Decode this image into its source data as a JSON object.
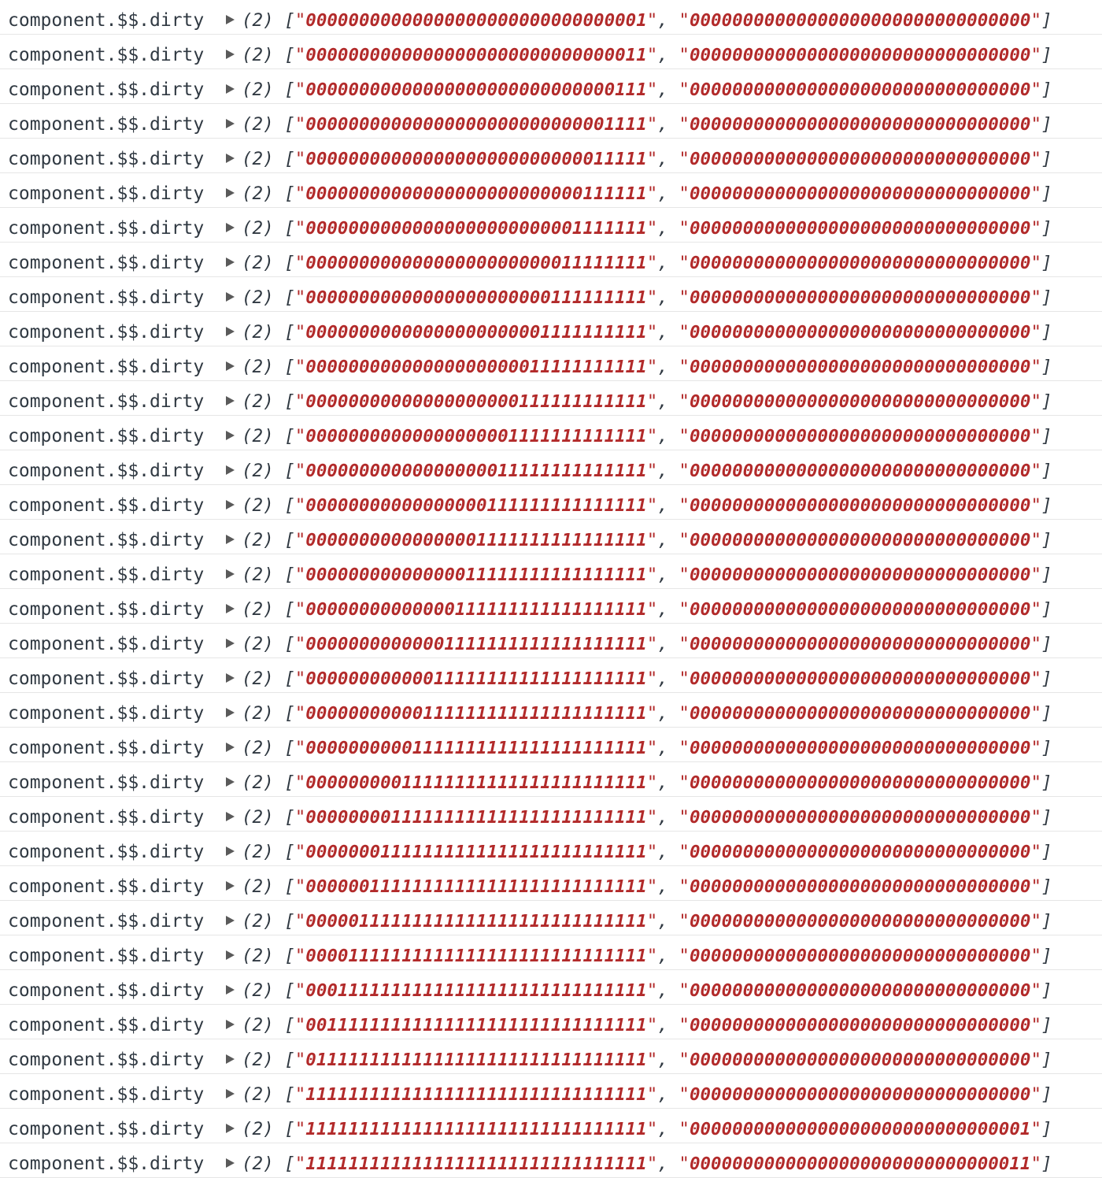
{
  "console": {
    "rows": [
      {
        "label": "component.$$.dirty",
        "count": "(2)",
        "first": "00000000000000000000000000000001",
        "second": "00000000000000000000000000000000"
      },
      {
        "label": "component.$$.dirty",
        "count": "(2)",
        "first": "00000000000000000000000000000011",
        "second": "00000000000000000000000000000000"
      },
      {
        "label": "component.$$.dirty",
        "count": "(2)",
        "first": "00000000000000000000000000000111",
        "second": "00000000000000000000000000000000"
      },
      {
        "label": "component.$$.dirty",
        "count": "(2)",
        "first": "00000000000000000000000000001111",
        "second": "00000000000000000000000000000000"
      },
      {
        "label": "component.$$.dirty",
        "count": "(2)",
        "first": "00000000000000000000000000011111",
        "second": "00000000000000000000000000000000"
      },
      {
        "label": "component.$$.dirty",
        "count": "(2)",
        "first": "00000000000000000000000000111111",
        "second": "00000000000000000000000000000000"
      },
      {
        "label": "component.$$.dirty",
        "count": "(2)",
        "first": "00000000000000000000000001111111",
        "second": "00000000000000000000000000000000"
      },
      {
        "label": "component.$$.dirty",
        "count": "(2)",
        "first": "00000000000000000000000011111111",
        "second": "00000000000000000000000000000000"
      },
      {
        "label": "component.$$.dirty",
        "count": "(2)",
        "first": "00000000000000000000000111111111",
        "second": "00000000000000000000000000000000"
      },
      {
        "label": "component.$$.dirty",
        "count": "(2)",
        "first": "00000000000000000000001111111111",
        "second": "00000000000000000000000000000000"
      },
      {
        "label": "component.$$.dirty",
        "count": "(2)",
        "first": "00000000000000000000011111111111",
        "second": "00000000000000000000000000000000"
      },
      {
        "label": "component.$$.dirty",
        "count": "(2)",
        "first": "00000000000000000000111111111111",
        "second": "00000000000000000000000000000000"
      },
      {
        "label": "component.$$.dirty",
        "count": "(2)",
        "first": "00000000000000000001111111111111",
        "second": "00000000000000000000000000000000"
      },
      {
        "label": "component.$$.dirty",
        "count": "(2)",
        "first": "00000000000000000011111111111111",
        "second": "00000000000000000000000000000000"
      },
      {
        "label": "component.$$.dirty",
        "count": "(2)",
        "first": "00000000000000000111111111111111",
        "second": "00000000000000000000000000000000"
      },
      {
        "label": "component.$$.dirty",
        "count": "(2)",
        "first": "00000000000000001111111111111111",
        "second": "00000000000000000000000000000000"
      },
      {
        "label": "component.$$.dirty",
        "count": "(2)",
        "first": "00000000000000011111111111111111",
        "second": "00000000000000000000000000000000"
      },
      {
        "label": "component.$$.dirty",
        "count": "(2)",
        "first": "00000000000000111111111111111111",
        "second": "00000000000000000000000000000000"
      },
      {
        "label": "component.$$.dirty",
        "count": "(2)",
        "first": "00000000000001111111111111111111",
        "second": "00000000000000000000000000000000"
      },
      {
        "label": "component.$$.dirty",
        "count": "(2)",
        "first": "00000000000011111111111111111111",
        "second": "00000000000000000000000000000000"
      },
      {
        "label": "component.$$.dirty",
        "count": "(2)",
        "first": "00000000000111111111111111111111",
        "second": "00000000000000000000000000000000"
      },
      {
        "label": "component.$$.dirty",
        "count": "(2)",
        "first": "00000000001111111111111111111111",
        "second": "00000000000000000000000000000000"
      },
      {
        "label": "component.$$.dirty",
        "count": "(2)",
        "first": "00000000011111111111111111111111",
        "second": "00000000000000000000000000000000"
      },
      {
        "label": "component.$$.dirty",
        "count": "(2)",
        "first": "00000000111111111111111111111111",
        "second": "00000000000000000000000000000000"
      },
      {
        "label": "component.$$.dirty",
        "count": "(2)",
        "first": "00000001111111111111111111111111",
        "second": "00000000000000000000000000000000"
      },
      {
        "label": "component.$$.dirty",
        "count": "(2)",
        "first": "00000011111111111111111111111111",
        "second": "00000000000000000000000000000000"
      },
      {
        "label": "component.$$.dirty",
        "count": "(2)",
        "first": "00000111111111111111111111111111",
        "second": "00000000000000000000000000000000"
      },
      {
        "label": "component.$$.dirty",
        "count": "(2)",
        "first": "00001111111111111111111111111111",
        "second": "00000000000000000000000000000000"
      },
      {
        "label": "component.$$.dirty",
        "count": "(2)",
        "first": "00011111111111111111111111111111",
        "second": "00000000000000000000000000000000"
      },
      {
        "label": "component.$$.dirty",
        "count": "(2)",
        "first": "00111111111111111111111111111111",
        "second": "00000000000000000000000000000000"
      },
      {
        "label": "component.$$.dirty",
        "count": "(2)",
        "first": "01111111111111111111111111111111",
        "second": "00000000000000000000000000000000"
      },
      {
        "label": "component.$$.dirty",
        "count": "(2)",
        "first": "11111111111111111111111111111111",
        "second": "00000000000000000000000000000000"
      },
      {
        "label": "component.$$.dirty",
        "count": "(2)",
        "first": "11111111111111111111111111111111",
        "second": "00000000000000000000000000000001"
      },
      {
        "label": "component.$$.dirty",
        "count": "(2)",
        "first": "11111111111111111111111111111111",
        "second": "00000000000000000000000000000011"
      }
    ],
    "colors": {
      "label": "#303942",
      "string": "#b22a2a",
      "row_border": "#e6e6e6",
      "expand_triangle": "#5a5a5a"
    },
    "icons": {
      "expand": "triangle-right-icon"
    }
  }
}
